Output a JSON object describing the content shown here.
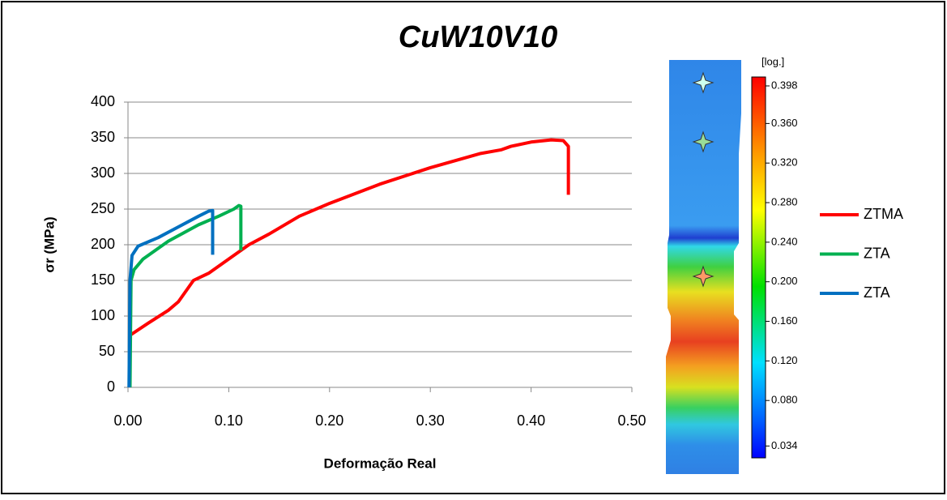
{
  "chart_data": {
    "type": "line",
    "title": "CuW10V10",
    "x_label": "Deformação Real",
    "y_label": "σr (MPa)",
    "xlim": [
      0,
      0.5
    ],
    "xticks": [
      {
        "value": 0,
        "label": "0.00"
      },
      {
        "value": 0.1,
        "label": "0.10"
      },
      {
        "value": 0.2,
        "label": "0.20"
      },
      {
        "value": 0.3,
        "label": "0.30"
      },
      {
        "value": 0.4,
        "label": "0.40"
      },
      {
        "value": 0.5,
        "label": "0.50"
      }
    ],
    "ylim": [
      0,
      400
    ],
    "yticks": [
      0,
      50,
      100,
      150,
      200,
      250,
      300,
      350,
      400
    ],
    "grid": true,
    "legend": "right",
    "series": [
      {
        "name": "ZTMA",
        "color": "#ff0000",
        "x": [
          0.002,
          0.02,
          0.04,
          0.05,
          0.065,
          0.08,
          0.1,
          0.12,
          0.14,
          0.17,
          0.2,
          0.25,
          0.3,
          0.35,
          0.37,
          0.38,
          0.4,
          0.42,
          0.432,
          0.437,
          0.437
        ],
        "values": [
          73,
          90,
          108,
          120,
          150,
          160,
          180,
          200,
          215,
          240,
          258,
          285,
          308,
          328,
          333,
          338,
          344,
          347,
          346,
          338,
          270
        ]
      },
      {
        "name": "ZTA",
        "color": "#00b050",
        "x": [
          0.002,
          0.003,
          0.006,
          0.015,
          0.04,
          0.07,
          0.09,
          0.105,
          0.11,
          0.112,
          0.112
        ],
        "values": [
          0,
          150,
          165,
          180,
          205,
          228,
          240,
          250,
          255,
          254,
          192
        ]
      },
      {
        "name": "ZTA",
        "color": "#0070c0",
        "x": [
          0.001,
          0.002,
          0.004,
          0.01,
          0.03,
          0.05,
          0.07,
          0.08,
          0.084,
          0.084
        ],
        "values": [
          0,
          150,
          185,
          198,
          210,
          225,
          240,
          247,
          248,
          186
        ]
      }
    ],
    "colorbar": {
      "label": "[log.]",
      "clim": [
        0.022,
        0.407
      ],
      "ticks": [
        0.398,
        {
          "value": 0.36,
          "label": "0.360"
        },
        {
          "value": 0.32,
          "label": "0.320"
        },
        {
          "value": 0.28,
          "label": "0.280"
        },
        {
          "value": 0.24,
          "label": "0.240"
        },
        {
          "value": 0.2,
          "label": "0.200"
        },
        {
          "value": 0.16,
          "label": "0.160"
        },
        {
          "value": 0.12,
          "label": "0.120"
        },
        {
          "value": 0.08,
          "label": "0.080"
        },
        0.034
      ]
    }
  }
}
